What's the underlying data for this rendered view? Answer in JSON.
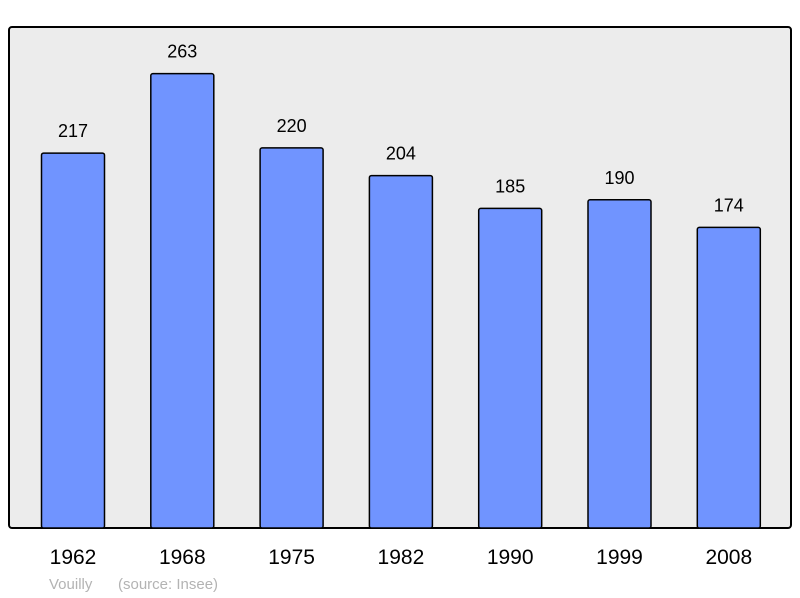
{
  "chart_data": {
    "type": "bar",
    "categories": [
      "1962",
      "1968",
      "1975",
      "1982",
      "1990",
      "1999",
      "2008"
    ],
    "values": [
      217,
      263,
      220,
      204,
      185,
      190,
      174
    ],
    "title": "",
    "xlabel": "",
    "ylabel": "",
    "ylim": [
      0,
      290
    ],
    "grid": false,
    "data_labels": true,
    "colors": {
      "bar": "#7094ff",
      "plot_background": "#ececec",
      "border": "#000000"
    }
  },
  "footer": {
    "place": "Vouilly",
    "source": "(source: Insee)"
  }
}
